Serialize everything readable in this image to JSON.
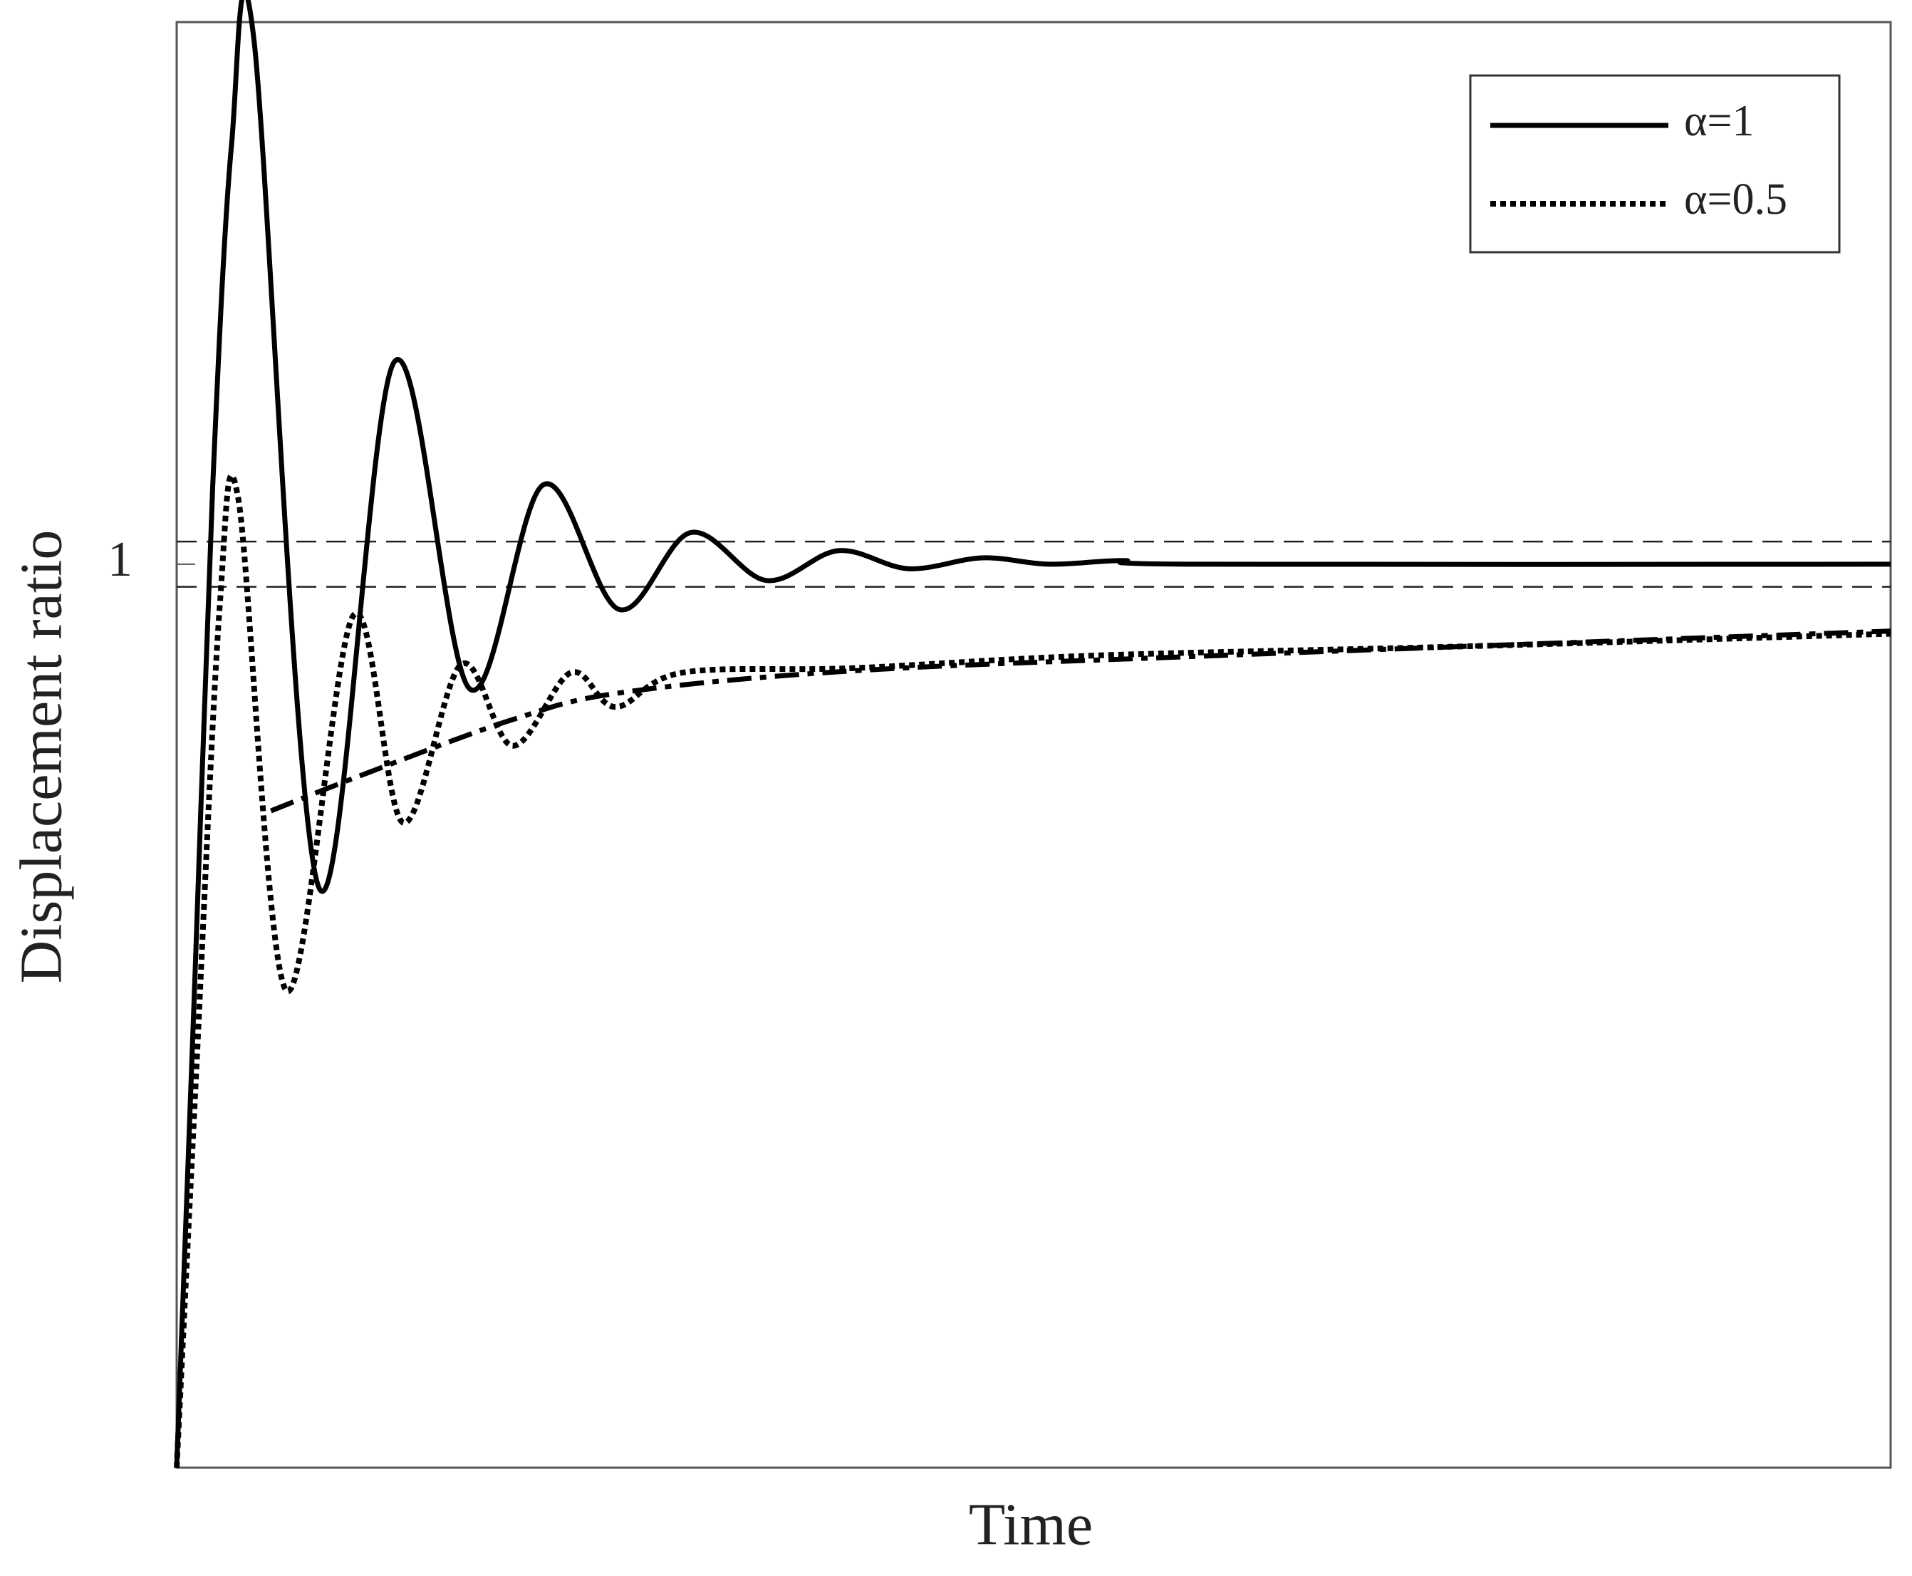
{
  "chart_data": {
    "type": "line",
    "x_label": "Time",
    "y_label": "Displacement ratio",
    "xlim": [
      0,
      100
    ],
    "ylim": [
      0,
      1.6
    ],
    "yticks": [
      1
    ],
    "reference_lines": [
      1.025,
      0.975
    ],
    "legend": "top-right",
    "series": [
      {
        "name": "α=1",
        "color": "#000000",
        "style": "solid",
        "x": [
          0,
          1.07,
          2.1,
          3.2,
          4.5,
          8.3,
          12.7,
          17.1,
          21.4,
          25.8,
          30.0,
          34.4,
          38.6,
          42.7,
          47.0,
          50.9,
          55.2,
          59.4,
          100
        ],
        "values": [
          0,
          0.545,
          1.085,
          1.464,
          1.582,
          0.642,
          1.224,
          0.862,
          1.088,
          0.95,
          1.035,
          0.982,
          1.015,
          0.995,
          1.007,
          1.0,
          1.004,
          1.0,
          1.0
        ]
      },
      {
        "name": "α=0.5",
        "color": "#000000",
        "style": "dotted",
        "x": [
          0,
          1.07,
          2.5,
          3.6,
          6.4,
          10.3,
          13.2,
          16.6,
          19.6,
          23.0,
          25.6,
          29.5,
          39.5,
          53.7,
          75.1,
          100
        ],
        "values": [
          0,
          0.41,
          0.95,
          1.072,
          0.528,
          0.943,
          0.714,
          0.889,
          0.799,
          0.88,
          0.842,
          0.88,
          0.885,
          0.899,
          0.909,
          0.923
        ]
      },
      {
        "color": "#000000",
        "style": "dashdot",
        "x": [
          5.5,
          11.0,
          19.6,
          26.0,
          39.5,
          60.9,
          100
        ],
        "values": [
          0.727,
          0.768,
          0.828,
          0.858,
          0.882,
          0.899,
          0.926
        ]
      }
    ]
  }
}
